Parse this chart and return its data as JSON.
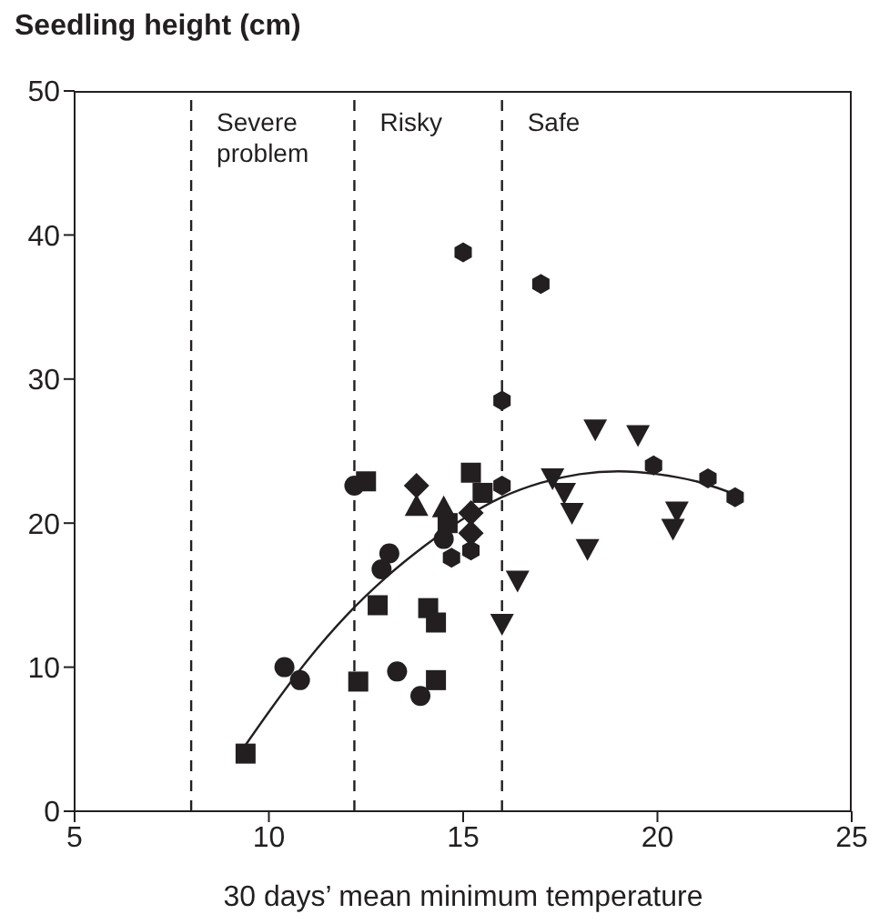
{
  "chart_data": {
    "type": "scatter",
    "ylabel": "Seedling height (cm)",
    "xlabel": "30 days’ mean minimum temperature",
    "xlim": [
      5,
      25
    ],
    "xticks": [
      5,
      10,
      15,
      20,
      25
    ],
    "ylim": [
      0,
      50
    ],
    "yticks": [
      0,
      10,
      20,
      30,
      40,
      50
    ],
    "series": [
      {
        "marker": "square",
        "color": "#231f20",
        "x": [
          9.4,
          12.5,
          15.2,
          15.5,
          14.6,
          12.8,
          14.1,
          14.3,
          14.3,
          12.3
        ],
        "values": [
          4.0,
          22.9,
          23.5,
          22.1,
          20.0,
          14.3,
          14.1,
          13.1,
          9.1,
          9.0
        ]
      },
      {
        "marker": "circle",
        "color": "#231f20",
        "x": [
          10.4,
          10.8,
          13.3,
          13.9,
          12.2,
          13.1,
          12.9,
          14.5
        ],
        "values": [
          10.0,
          9.1,
          9.7,
          8.0,
          22.6,
          17.9,
          16.8,
          18.9
        ]
      },
      {
        "color": "#231f20",
        "x": [
          15.0,
          17.0,
          16.0,
          16.0,
          14.7,
          15.2,
          19.9,
          21.3,
          22.0
        ],
        "values": [
          38.8,
          36.6,
          28.5,
          22.6,
          17.6,
          18.1,
          24.0,
          23.1,
          21.8
        ]
      },
      {
        "marker": "triangle",
        "color": "#231f20",
        "x": [
          13.8,
          14.5
        ],
        "values": [
          21.2,
          21.1
        ]
      },
      {
        "marker": "diamond",
        "color": "#231f20",
        "x": [
          13.8,
          15.2,
          15.2
        ],
        "values": [
          22.6,
          20.7,
          19.3
        ]
      },
      {
        "marker": "triangle-down",
        "color": "#231f20",
        "x": [
          18.4,
          19.5,
          17.3,
          17.6,
          18.2,
          16.4,
          16.0,
          17.8,
          20.5,
          20.4
        ],
        "values": [
          26.5,
          26.1,
          23.1,
          22.1,
          18.2,
          16.0,
          13.0,
          20.7,
          20.8,
          19.6
        ]
      },
      {
        "type": "line",
        "marker": "none",
        "color": "#231f20",
        "x": [
          9.4,
          10,
          11,
          12,
          13,
          14,
          15,
          16,
          17,
          18,
          19,
          20,
          21,
          22
        ],
        "values": [
          4.6,
          6.9,
          10.5,
          13.6,
          16.2,
          18.4,
          20.3,
          21.8,
          22.8,
          23.4,
          23.6,
          23.4,
          22.9,
          22.0
        ]
      }
    ],
    "ref_lines": [
      {
        "axis": "x",
        "value": 8,
        "label": "Severe problem",
        "line_style": "dashed"
      },
      {
        "axis": "x",
        "value": 12.2,
        "label": "Risky",
        "line_style": "dashed"
      },
      {
        "axis": "x",
        "value": 16,
        "label": "Safe",
        "line_style": "dashed"
      }
    ]
  }
}
